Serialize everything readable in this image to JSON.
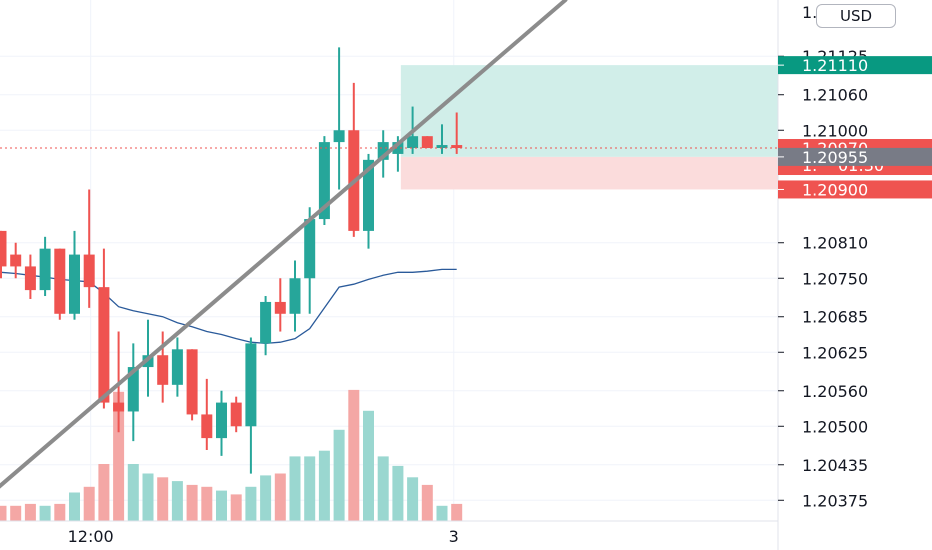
{
  "currency": "USD",
  "price_axis": {
    "min": 1.2034,
    "max": 1.2122,
    "ticks": [
      "1.20375",
      "1.20435",
      "1.20500",
      "1.20560",
      "1.20625",
      "1.20685",
      "1.20750",
      "1.20810",
      "1.21000",
      "1.21060",
      "1.21125"
    ],
    "top_tick_partial": "1.  0"
  },
  "time_axis": {
    "labels": [
      {
        "text": "12:00",
        "bar": 6.1
      },
      {
        "text": "3",
        "bar": 30.8
      }
    ]
  },
  "badges": {
    "target": "1.21110",
    "last_price": "1.20970",
    "countdown": "01:30",
    "entry": "1.20955",
    "stop": "1.20900",
    "last_partial": "1."
  },
  "colors": {
    "up": "#26a69a",
    "down": "#ef5350",
    "grid": "#f0f3fa",
    "ma": "#2a5a9a",
    "trendline": "#8c8c8c",
    "profit_zone": "#d1eee9",
    "loss_zone": "#fbdcdc",
    "target_badge": "#089981",
    "entry_badge": "#787b86"
  },
  "chart_data": {
    "type": "candlestick",
    "symbol_currency": "USD",
    "candles": [
      {
        "o": 1.2083,
        "h": 1.2083,
        "l": 1.2075,
        "c": 1.2077
      },
      {
        "o": 1.2079,
        "h": 1.2081,
        "l": 1.2075,
        "c": 1.2077
      },
      {
        "o": 1.2077,
        "h": 1.2079,
        "l": 1.20715,
        "c": 1.2073
      },
      {
        "o": 1.2073,
        "h": 1.2082,
        "l": 1.2072,
        "c": 1.208
      },
      {
        "o": 1.208,
        "h": 1.208,
        "l": 1.2068,
        "c": 1.2069
      },
      {
        "o": 1.2069,
        "h": 1.2083,
        "l": 1.2068,
        "c": 1.2079
      },
      {
        "o": 1.2079,
        "h": 1.209,
        "l": 1.207,
        "c": 1.20735
      },
      {
        "o": 1.20735,
        "h": 1.208,
        "l": 1.2053,
        "c": 1.2054
      },
      {
        "o": 1.2054,
        "h": 1.2066,
        "l": 1.2049,
        "c": 1.20525
      },
      {
        "o": 1.20525,
        "h": 1.2064,
        "l": 1.20475,
        "c": 1.206
      },
      {
        "o": 1.206,
        "h": 1.2068,
        "l": 1.2055,
        "c": 1.2062
      },
      {
        "o": 1.2062,
        "h": 1.2066,
        "l": 1.2054,
        "c": 1.2057
      },
      {
        "o": 1.2057,
        "h": 1.2065,
        "l": 1.2055,
        "c": 1.2063
      },
      {
        "o": 1.2063,
        "h": 1.2063,
        "l": 1.2051,
        "c": 1.2052
      },
      {
        "o": 1.2052,
        "h": 1.2058,
        "l": 1.2046,
        "c": 1.2048
      },
      {
        "o": 1.2048,
        "h": 1.2056,
        "l": 1.2045,
        "c": 1.2054
      },
      {
        "o": 1.2054,
        "h": 1.2055,
        "l": 1.2049,
        "c": 1.205
      },
      {
        "o": 1.205,
        "h": 1.2065,
        "l": 1.2042,
        "c": 1.2064
      },
      {
        "o": 1.2064,
        "h": 1.2072,
        "l": 1.2062,
        "c": 1.2071
      },
      {
        "o": 1.2071,
        "h": 1.2075,
        "l": 1.2066,
        "c": 1.2069
      },
      {
        "o": 1.2069,
        "h": 1.2078,
        "l": 1.2066,
        "c": 1.2075
      },
      {
        "o": 1.2075,
        "h": 1.2087,
        "l": 1.2069,
        "c": 1.2085
      },
      {
        "o": 1.2085,
        "h": 1.2099,
        "l": 1.2084,
        "c": 1.2098
      },
      {
        "o": 1.2098,
        "h": 1.2114,
        "l": 1.209,
        "c": 1.21
      },
      {
        "o": 1.21,
        "h": 1.2108,
        "l": 1.2082,
        "c": 1.2083
      },
      {
        "o": 1.2083,
        "h": 1.2096,
        "l": 1.208,
        "c": 1.2095
      },
      {
        "o": 1.2095,
        "h": 1.21,
        "l": 1.2092,
        "c": 1.2098
      },
      {
        "o": 1.2096,
        "h": 1.2099,
        "l": 1.2093,
        "c": 1.2098
      },
      {
        "o": 1.2097,
        "h": 1.2104,
        "l": 1.2096,
        "c": 1.2099
      },
      {
        "o": 1.2099,
        "h": 1.2099,
        "l": 1.2097,
        "c": 1.2097
      },
      {
        "o": 1.2097,
        "h": 1.2101,
        "l": 1.2096,
        "c": 1.20975
      },
      {
        "o": 1.20975,
        "h": 1.2103,
        "l": 1.2096,
        "c": 1.2097
      }
    ],
    "volumes": [
      8,
      8,
      9,
      8,
      9,
      15,
      18,
      30,
      68,
      30,
      25,
      23,
      21,
      19,
      18,
      16,
      14,
      18,
      24,
      25,
      34,
      34,
      37,
      48,
      69,
      58,
      34,
      29,
      23,
      19,
      8,
      9
    ],
    "moving_average": [
      1.2076,
      1.20758,
      1.20755,
      1.20752,
      1.20748,
      1.20746,
      1.20744,
      1.20725,
      1.20702,
      1.20695,
      1.2069,
      1.20685,
      1.20675,
      1.20668,
      1.2066,
      1.20655,
      1.20648,
      1.20642,
      1.2064,
      1.20642,
      1.20648,
      1.20665,
      1.207,
      1.20735,
      1.2074,
      1.20748,
      1.20755,
      1.2076,
      1.2076,
      1.20762,
      1.20765,
      1.20765
    ],
    "trendline": {
      "p1": {
        "bar": -0.5,
        "price": 1.2039
      },
      "p2": {
        "bar": 38.4,
        "price": 1.2122
      }
    },
    "position": {
      "entry": 1.20955,
      "target": 1.2111,
      "stop": 1.209,
      "bar_start": 27.2,
      "bar_end": 50
    }
  }
}
